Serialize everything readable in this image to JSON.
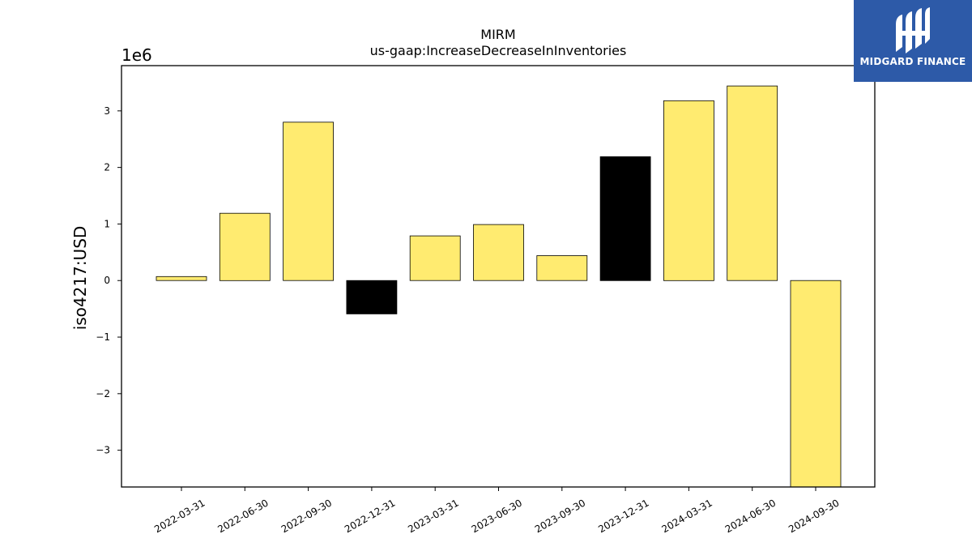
{
  "chart_data": {
    "type": "bar",
    "title": "MIRM",
    "subtitle": "us-gaap:IncreaseDecreaseInInventories",
    "ylabel": "iso4217:USD",
    "xlabel": "",
    "offset_text": "1e6",
    "scale": 1000000,
    "ylim": [
      -3.65,
      3.8
    ],
    "yticks": [
      -3,
      -2,
      -1,
      0,
      1,
      2,
      3
    ],
    "categories": [
      "2022-03-31",
      "2022-06-30",
      "2022-09-30",
      "2022-12-31",
      "2023-03-31",
      "2023-06-30",
      "2023-09-30",
      "2023-12-31",
      "2024-03-31",
      "2024-06-30",
      "2024-09-30"
    ],
    "values": [
      0.07,
      1.19,
      2.8,
      -0.59,
      0.79,
      0.99,
      0.44,
      2.19,
      3.18,
      3.44,
      -3.65
    ],
    "bar_colors": [
      "#ffeb70",
      "#ffeb70",
      "#ffeb70",
      "#000000",
      "#ffeb70",
      "#ffeb70",
      "#ffeb70",
      "#000000",
      "#ffeb70",
      "#ffeb70",
      "#ffeb70"
    ],
    "grid": false
  },
  "brand": {
    "name": "MIDGARD FINANCE",
    "color": "#2d5aa8"
  }
}
